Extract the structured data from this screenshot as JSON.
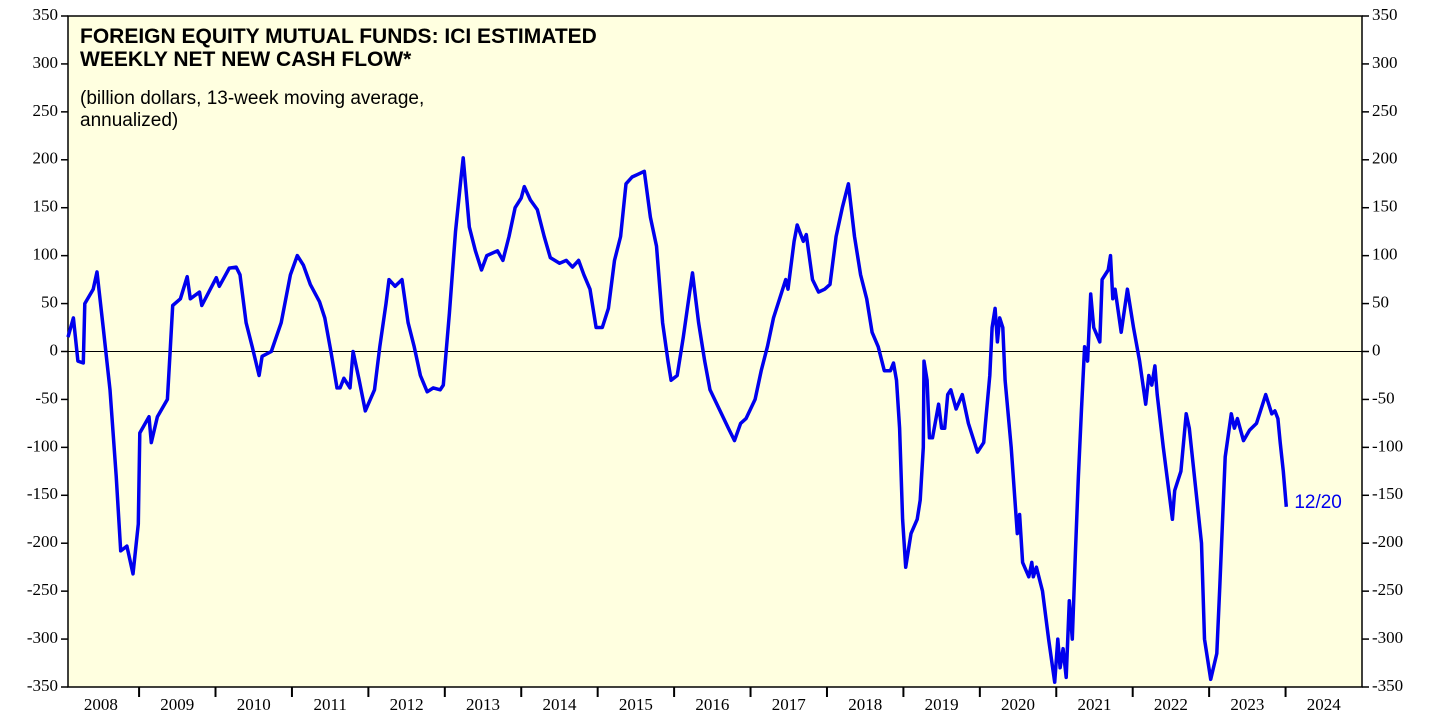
{
  "chart_data": {
    "type": "line",
    "title": [
      "FOREIGN EQUITY MUTUAL FUNDS: ICI ESTIMATED",
      "WEEKLY NET NEW CASH FLOW*"
    ],
    "subtitle": [
      "(billion dollars, 13-week moving average,",
      "annualized)"
    ],
    "annotation": "12/20",
    "x": [
      2008.07,
      2008.14,
      2008.2,
      2008.27,
      2008.29,
      2008.4,
      2008.45,
      2008.53,
      2008.62,
      2008.7,
      2008.76,
      2008.84,
      2008.92,
      2008.99,
      2009.01,
      2009.13,
      2009.16,
      2009.24,
      2009.37,
      2009.41,
      2009.44,
      2009.54,
      2009.63,
      2009.67,
      2009.79,
      2009.82,
      2010.01,
      2010.05,
      2010.18,
      2010.27,
      2010.32,
      2010.4,
      2010.48,
      2010.57,
      2010.61,
      2010.73,
      2010.86,
      2010.98,
      2011.07,
      2011.15,
      2011.24,
      2011.36,
      2011.43,
      2011.51,
      2011.59,
      2011.63,
      2011.68,
      2011.76,
      2011.8,
      2011.88,
      2011.96,
      2012.08,
      2012.15,
      2012.23,
      2012.27,
      2012.35,
      2012.44,
      2012.52,
      2012.6,
      2012.68,
      2012.77,
      2012.85,
      2012.94,
      2012.98,
      2013.06,
      2013.14,
      2013.21,
      2013.24,
      2013.32,
      2013.4,
      2013.48,
      2013.55,
      2013.69,
      2013.76,
      2013.84,
      2013.92,
      2014.0,
      2014.04,
      2014.12,
      2014.21,
      2014.3,
      2014.38,
      2014.5,
      2014.59,
      2014.67,
      2014.75,
      2014.82,
      2014.9,
      2014.98,
      2015.06,
      2015.14,
      2015.22,
      2015.3,
      2015.37,
      2015.45,
      2015.53,
      2015.61,
      2015.69,
      2015.77,
      2015.85,
      2015.92,
      2015.96,
      2016.04,
      2016.12,
      2016.2,
      2016.24,
      2016.32,
      2016.4,
      2016.47,
      2016.59,
      2016.71,
      2016.79,
      2016.87,
      2016.94,
      2017.06,
      2017.14,
      2017.22,
      2017.3,
      2017.38,
      2017.46,
      2017.49,
      2017.57,
      2017.61,
      2017.69,
      2017.73,
      2017.81,
      2017.89,
      2017.97,
      2018.04,
      2018.12,
      2018.2,
      2018.28,
      2018.36,
      2018.44,
      2018.52,
      2018.59,
      2018.67,
      2018.75,
      2018.83,
      2018.87,
      2018.91,
      2018.95,
      2018.99,
      2019.03,
      2019.1,
      2019.18,
      2019.22,
      2019.26,
      2019.27,
      2019.31,
      2019.34,
      2019.38,
      2019.46,
      2019.5,
      2019.54,
      2019.58,
      2019.62,
      2019.69,
      2019.77,
      2019.85,
      2019.97,
      2020.05,
      2020.13,
      2020.16,
      2020.2,
      2020.23,
      2020.26,
      2020.3,
      2020.33,
      2020.41,
      2020.49,
      2020.52,
      2020.56,
      2020.64,
      2020.68,
      2020.7,
      2020.74,
      2020.82,
      2020.9,
      2020.98,
      2021.02,
      2021.05,
      2021.09,
      2021.13,
      2021.17,
      2021.21,
      2021.25,
      2021.29,
      2021.33,
      2021.37,
      2021.41,
      2021.45,
      2021.49,
      2021.57,
      2021.6,
      2021.68,
      2021.71,
      2021.74,
      2021.77,
      2021.85,
      2021.93,
      2022.01,
      2022.09,
      2022.17,
      2022.21,
      2022.25,
      2022.29,
      2022.32,
      2022.4,
      2022.48,
      2022.52,
      2022.55,
      2022.63,
      2022.7,
      2022.74,
      2022.82,
      2022.9,
      2022.94,
      2023.02,
      2023.1,
      2023.14,
      2023.21,
      2023.29,
      2023.33,
      2023.37,
      2023.45,
      2023.53,
      2023.62,
      2023.74,
      2023.82,
      2023.86,
      2023.9,
      2023.93,
      2023.97,
      2024.01
    ],
    "series": [
      {
        "name": "Foreign equity net new cash flow",
        "color": "#0000ee",
        "values": [
          15,
          35,
          -10,
          -12,
          50,
          65,
          83,
          25,
          -40,
          -130,
          -208,
          -203,
          -232,
          -180,
          -85,
          -68,
          -95,
          -68,
          -50,
          5,
          48,
          55,
          78,
          55,
          62,
          48,
          77,
          68,
          87,
          88,
          80,
          30,
          5,
          -25,
          -5,
          0,
          30,
          80,
          100,
          90,
          70,
          52,
          35,
          0,
          -38,
          -38,
          -28,
          -38,
          0,
          -30,
          -62,
          -40,
          5,
          50,
          75,
          68,
          75,
          30,
          5,
          -25,
          -42,
          -38,
          -40,
          -35,
          40,
          125,
          180,
          202,
          130,
          105,
          85,
          100,
          105,
          95,
          120,
          150,
          160,
          172,
          158,
          148,
          120,
          98,
          92,
          95,
          88,
          95,
          80,
          65,
          25,
          25,
          45,
          95,
          120,
          175,
          182,
          185,
          188,
          140,
          110,
          30,
          -10,
          -30,
          -25,
          15,
          60,
          82,
          30,
          -10,
          -40,
          -60,
          -80,
          -93,
          -75,
          -70,
          -50,
          -20,
          5,
          35,
          55,
          75,
          65,
          115,
          132,
          115,
          122,
          75,
          62,
          65,
          70,
          120,
          150,
          175,
          120,
          80,
          55,
          20,
          5,
          -20,
          -20,
          -12,
          -30,
          -80,
          -175,
          -225,
          -190,
          -175,
          -155,
          -100,
          -10,
          -30,
          -90,
          -90,
          -55,
          -80,
          -80,
          -45,
          -40,
          -60,
          -45,
          -75,
          -105,
          -95,
          -25,
          25,
          45,
          10,
          35,
          25,
          -30,
          -100,
          -190,
          -170,
          -220,
          -235,
          -220,
          -235,
          -225,
          -250,
          -300,
          -345,
          -300,
          -330,
          -310,
          -340,
          -260,
          -300,
          -210,
          -130,
          -60,
          5,
          -10,
          60,
          25,
          10,
          75,
          85,
          100,
          55,
          65,
          20,
          65,
          25,
          -10,
          -55,
          -25,
          -35,
          -15,
          -45,
          -100,
          -150,
          -175,
          -145,
          -125,
          -65,
          -80,
          -140,
          -200,
          -300,
          -342,
          -315,
          -245,
          -110,
          -65,
          -80,
          -70,
          -93,
          -82,
          -75,
          -45,
          -65,
          -62,
          -70,
          -95,
          -125,
          -162
        ]
      }
    ],
    "xlim": [
      2008.07,
      2025
    ],
    "xticks": [
      2008,
      2009,
      2010,
      2011,
      2012,
      2013,
      2014,
      2015,
      2016,
      2017,
      2018,
      2019,
      2020,
      2021,
      2022,
      2023,
      2024
    ],
    "ylim": [
      -350,
      350
    ],
    "yticks": [
      -350,
      -300,
      -250,
      -200,
      -150,
      -100,
      -50,
      0,
      50,
      100,
      150,
      200,
      250,
      300,
      350
    ],
    "right_axis": true,
    "zero_line": true,
    "background": "#ffffe0"
  }
}
